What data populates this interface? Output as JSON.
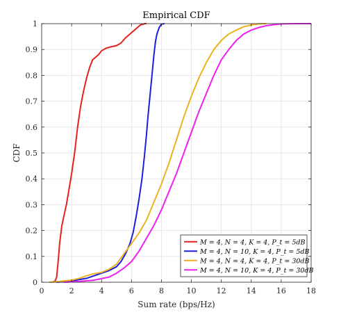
{
  "chart_data": {
    "type": "line",
    "title": "Empirical CDF",
    "xlabel": "Sum rate (bps/Hz)",
    "ylabel": "CDF",
    "xlim": [
      0,
      18
    ],
    "ylim": [
      0,
      1
    ],
    "xticks": [
      0,
      2,
      4,
      6,
      8,
      10,
      12,
      14,
      16,
      18
    ],
    "yticks": [
      0,
      0.1,
      0.2,
      0.3,
      0.4,
      0.5,
      0.6,
      0.7,
      0.8,
      0.9,
      1
    ],
    "grid": true,
    "legend_position": "bottom-right",
    "series": [
      {
        "name": "M = 4, N = 4, K = 4, P_t = 5dB",
        "color": "#e8201b",
        "points": [
          [
            0.7,
            0
          ],
          [
            0.9,
            0.005
          ],
          [
            1.0,
            0.02
          ],
          [
            1.1,
            0.08
          ],
          [
            1.2,
            0.15
          ],
          [
            1.35,
            0.22
          ],
          [
            1.5,
            0.26
          ],
          [
            1.65,
            0.3
          ],
          [
            1.8,
            0.35
          ],
          [
            2.0,
            0.42
          ],
          [
            2.2,
            0.5
          ],
          [
            2.4,
            0.6
          ],
          [
            2.6,
            0.68
          ],
          [
            2.8,
            0.74
          ],
          [
            3.0,
            0.79
          ],
          [
            3.2,
            0.83
          ],
          [
            3.4,
            0.86
          ],
          [
            3.6,
            0.87
          ],
          [
            3.8,
            0.88
          ],
          [
            4.0,
            0.895
          ],
          [
            4.3,
            0.905
          ],
          [
            4.6,
            0.91
          ],
          [
            5.0,
            0.915
          ],
          [
            5.3,
            0.925
          ],
          [
            5.6,
            0.945
          ],
          [
            6.0,
            0.965
          ],
          [
            6.3,
            0.98
          ],
          [
            6.6,
            0.995
          ],
          [
            6.9,
            1.0
          ],
          [
            7.0,
            1.0
          ]
        ]
      },
      {
        "name": "M = 4, N = 10, K = 4, P_t = 5dB",
        "color": "#1c1ce0",
        "points": [
          [
            1.0,
            0
          ],
          [
            2.0,
            0.005
          ],
          [
            3.0,
            0.015
          ],
          [
            3.5,
            0.025
          ],
          [
            4.0,
            0.035
          ],
          [
            4.5,
            0.045
          ],
          [
            5.0,
            0.06
          ],
          [
            5.3,
            0.08
          ],
          [
            5.6,
            0.11
          ],
          [
            5.9,
            0.15
          ],
          [
            6.1,
            0.19
          ],
          [
            6.3,
            0.25
          ],
          [
            6.5,
            0.32
          ],
          [
            6.7,
            0.4
          ],
          [
            6.85,
            0.48
          ],
          [
            7.0,
            0.57
          ],
          [
            7.1,
            0.64
          ],
          [
            7.2,
            0.7
          ],
          [
            7.3,
            0.76
          ],
          [
            7.4,
            0.82
          ],
          [
            7.5,
            0.88
          ],
          [
            7.6,
            0.93
          ],
          [
            7.7,
            0.96
          ],
          [
            7.85,
            0.985
          ],
          [
            8.0,
            0.998
          ],
          [
            8.2,
            1.0
          ]
        ]
      },
      {
        "name": "M = 4, N = 4, K = 4, P_t = 30dB",
        "color": "#edb120",
        "points": [
          [
            0.5,
            0
          ],
          [
            1.0,
            0.002
          ],
          [
            1.5,
            0.005
          ],
          [
            2.0,
            0.008
          ],
          [
            2.5,
            0.015
          ],
          [
            3.0,
            0.025
          ],
          [
            3.5,
            0.033
          ],
          [
            4.0,
            0.038
          ],
          [
            4.5,
            0.05
          ],
          [
            5.0,
            0.07
          ],
          [
            5.5,
            0.11
          ],
          [
            6.0,
            0.15
          ],
          [
            6.5,
            0.19
          ],
          [
            7.0,
            0.24
          ],
          [
            7.5,
            0.31
          ],
          [
            8.0,
            0.38
          ],
          [
            8.5,
            0.46
          ],
          [
            9.0,
            0.55
          ],
          [
            9.5,
            0.64
          ],
          [
            10.0,
            0.72
          ],
          [
            10.5,
            0.79
          ],
          [
            11.0,
            0.85
          ],
          [
            11.5,
            0.9
          ],
          [
            12.0,
            0.935
          ],
          [
            12.5,
            0.96
          ],
          [
            13.0,
            0.975
          ],
          [
            13.5,
            0.988
          ],
          [
            14.0,
            0.995
          ],
          [
            14.5,
            0.999
          ],
          [
            15.0,
            1.0
          ]
        ]
      },
      {
        "name": "M = 4, N = 10, K = 4, P_t = 30dB",
        "color": "#ee1fef",
        "points": [
          [
            1.5,
            0
          ],
          [
            2.5,
            0.003
          ],
          [
            3.5,
            0.008
          ],
          [
            4.5,
            0.02
          ],
          [
            5.0,
            0.035
          ],
          [
            5.5,
            0.055
          ],
          [
            6.0,
            0.08
          ],
          [
            6.5,
            0.12
          ],
          [
            7.0,
            0.17
          ],
          [
            7.5,
            0.22
          ],
          [
            8.0,
            0.28
          ],
          [
            8.5,
            0.35
          ],
          [
            9.0,
            0.42
          ],
          [
            9.5,
            0.5
          ],
          [
            10.0,
            0.58
          ],
          [
            10.5,
            0.66
          ],
          [
            11.0,
            0.73
          ],
          [
            11.5,
            0.8
          ],
          [
            12.0,
            0.86
          ],
          [
            12.5,
            0.9
          ],
          [
            13.0,
            0.935
          ],
          [
            13.5,
            0.96
          ],
          [
            14.0,
            0.975
          ],
          [
            14.5,
            0.985
          ],
          [
            15.0,
            0.992
          ],
          [
            15.5,
            0.996
          ],
          [
            16.0,
            0.999
          ],
          [
            17.0,
            1.0
          ],
          [
            18.0,
            1.0
          ]
        ]
      }
    ]
  }
}
